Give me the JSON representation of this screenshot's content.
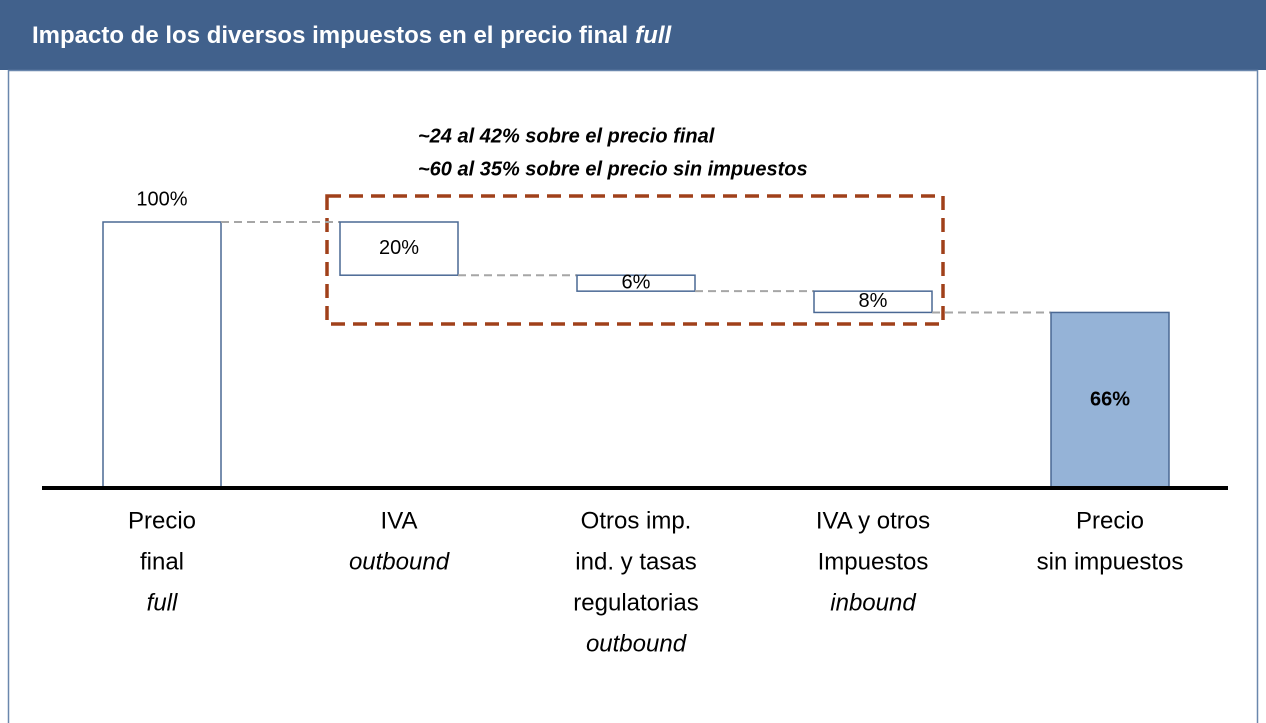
{
  "chart_data": {
    "type": "waterfall",
    "title_parts": [
      {
        "text": "Impacto de los diversos impuestos en el precio final",
        "italic": false
      },
      {
        "text": "full",
        "italic": true
      }
    ],
    "annotations": [
      "~24 al 42% sobre el precio final",
      "~60 al 35% sobre el precio sin impuestos"
    ],
    "categories": [
      [
        {
          "text": "Precio",
          "italic": false
        },
        {
          "text": "final",
          "italic": false
        },
        {
          "text": "full",
          "italic": true
        }
      ],
      [
        {
          "text": "IVA",
          "italic": false
        },
        {
          "text": "outbound",
          "italic": true
        }
      ],
      [
        {
          "text": "Otros imp.",
          "italic": false
        },
        {
          "text": "ind. y tasas",
          "italic": false
        },
        {
          "text": "regulatorias",
          "italic": false
        },
        {
          "text": "outbound",
          "italic": true
        }
      ],
      [
        {
          "text": "IVA y otros",
          "italic": false
        },
        {
          "text": "Impuestos",
          "italic": false
        },
        {
          "text": "inbound",
          "italic": true
        }
      ],
      [
        {
          "text": "Precio",
          "italic": false
        },
        {
          "text": "sin impuestos",
          "italic": false
        }
      ]
    ],
    "measure": [
      "total",
      "decrease",
      "decrease",
      "decrease",
      "total"
    ],
    "values": [
      100,
      20,
      6,
      8,
      66
    ],
    "value_labels": [
      "100%",
      "20%",
      "6%",
      "8%",
      "66%"
    ],
    "colors": {
      "total_start": "#ffffff",
      "decrease": "#ffffff",
      "total_end": "#95b3d7",
      "outline": "#4a6894"
    }
  }
}
